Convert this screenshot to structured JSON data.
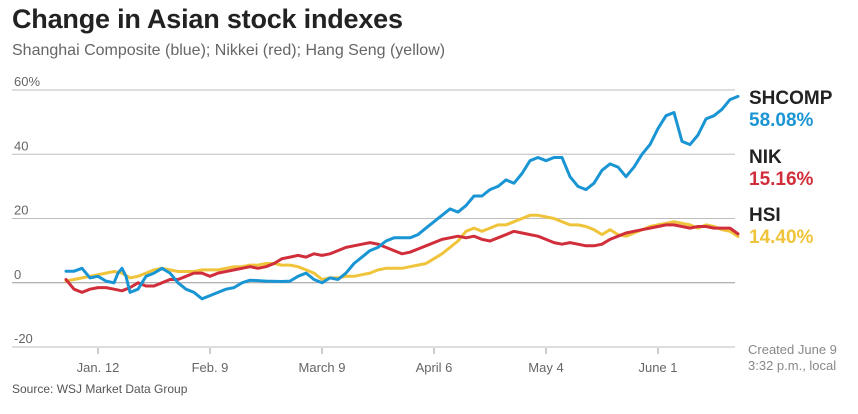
{
  "title": "Change in Asian stock indexes",
  "subtitle": "Shanghai Composite (blue); Nikkei (red); Hang Seng (yellow)",
  "source": "Source: WSJ Market Data Group",
  "created_line1": "Created June 9",
  "created_line2": "3:32 p.m., local",
  "chart_data": {
    "type": "line",
    "ylim": [
      -20,
      60
    ],
    "y_ticks": [
      {
        "value": 60,
        "label": "60%"
      },
      {
        "value": 40,
        "label": "40"
      },
      {
        "value": 20,
        "label": "20"
      },
      {
        "value": 0,
        "label": "0"
      },
      {
        "value": -20,
        "label": "-20"
      }
    ],
    "x_range": [
      0,
      160
    ],
    "x_ticks": [
      {
        "value": 8,
        "label": "Jan. 12"
      },
      {
        "value": 36,
        "label": "Feb. 9"
      },
      {
        "value": 64,
        "label": "March 9"
      },
      {
        "value": 92,
        "label": "April 6"
      },
      {
        "value": 120,
        "label": "May 4"
      },
      {
        "value": 148,
        "label": "June 1"
      }
    ],
    "series": [
      {
        "name": "SHCOMP",
        "end_label": "58.08%",
        "color": "#1a95d4",
        "points": [
          [
            0,
            3.6
          ],
          [
            2,
            3.6
          ],
          [
            4,
            4.5
          ],
          [
            6,
            1.5
          ],
          [
            8,
            2
          ],
          [
            10,
            0.5
          ],
          [
            12,
            0
          ],
          [
            13,
            3
          ],
          [
            14,
            4.5
          ],
          [
            15,
            2
          ],
          [
            16,
            -3
          ],
          [
            18,
            -2
          ],
          [
            20,
            2
          ],
          [
            22,
            3
          ],
          [
            24,
            4.5
          ],
          [
            26,
            3
          ],
          [
            28,
            0
          ],
          [
            30,
            -2
          ],
          [
            32,
            -3
          ],
          [
            34,
            -5
          ],
          [
            36,
            -4
          ],
          [
            38,
            -3
          ],
          [
            40,
            -2
          ],
          [
            42,
            -1.5
          ],
          [
            44,
            0
          ],
          [
            46,
            0.8
          ],
          [
            50,
            0.5
          ],
          [
            54,
            0.4
          ],
          [
            56,
            0.5
          ],
          [
            58,
            2
          ],
          [
            60,
            3
          ],
          [
            62,
            1
          ],
          [
            64,
            0
          ],
          [
            66,
            1.5
          ],
          [
            68,
            1
          ],
          [
            70,
            3
          ],
          [
            72,
            6
          ],
          [
            74,
            8
          ],
          [
            76,
            10
          ],
          [
            78,
            11
          ],
          [
            80,
            13
          ],
          [
            82,
            14
          ],
          [
            84,
            14
          ],
          [
            86,
            14
          ],
          [
            88,
            15
          ],
          [
            90,
            17
          ],
          [
            92,
            19
          ],
          [
            94,
            21
          ],
          [
            96,
            23
          ],
          [
            98,
            22
          ],
          [
            100,
            24
          ],
          [
            102,
            27
          ],
          [
            104,
            27
          ],
          [
            106,
            29
          ],
          [
            108,
            30
          ],
          [
            110,
            32
          ],
          [
            112,
            31
          ],
          [
            114,
            34
          ],
          [
            116,
            38
          ],
          [
            118,
            39
          ],
          [
            120,
            38
          ],
          [
            122,
            39
          ],
          [
            124,
            39
          ],
          [
            126,
            33
          ],
          [
            128,
            30
          ],
          [
            130,
            29
          ],
          [
            132,
            31
          ],
          [
            134,
            35
          ],
          [
            136,
            37
          ],
          [
            138,
            36
          ],
          [
            140,
            33
          ],
          [
            142,
            36
          ],
          [
            144,
            40
          ],
          [
            146,
            43
          ],
          [
            148,
            48
          ],
          [
            150,
            52
          ],
          [
            152,
            53
          ],
          [
            154,
            44
          ],
          [
            156,
            43
          ],
          [
            158,
            46
          ],
          [
            160,
            51
          ],
          [
            162,
            52
          ],
          [
            164,
            54
          ],
          [
            166,
            57
          ],
          [
            168,
            58
          ]
        ]
      },
      {
        "name": "NIK",
        "end_label": "15.16%",
        "color": "#d12e3b",
        "points": [
          [
            0,
            1
          ],
          [
            2,
            -2
          ],
          [
            4,
            -3
          ],
          [
            6,
            -2
          ],
          [
            8,
            -1.5
          ],
          [
            10,
            -1.5
          ],
          [
            12,
            -2
          ],
          [
            14,
            -2.5
          ],
          [
            16,
            -1.5
          ],
          [
            18,
            0
          ],
          [
            20,
            -1
          ],
          [
            22,
            -1
          ],
          [
            24,
            0
          ],
          [
            26,
            1
          ],
          [
            28,
            1
          ],
          [
            30,
            2
          ],
          [
            32,
            3
          ],
          [
            34,
            3
          ],
          [
            36,
            2
          ],
          [
            38,
            3
          ],
          [
            40,
            3.5
          ],
          [
            42,
            4
          ],
          [
            44,
            4.5
          ],
          [
            46,
            5
          ],
          [
            48,
            4.5
          ],
          [
            50,
            5
          ],
          [
            52,
            6
          ],
          [
            54,
            7.5
          ],
          [
            56,
            8
          ],
          [
            58,
            8.5
          ],
          [
            60,
            8
          ],
          [
            62,
            9
          ],
          [
            64,
            8.5
          ],
          [
            66,
            9
          ],
          [
            68,
            10
          ],
          [
            70,
            11
          ],
          [
            72,
            11.5
          ],
          [
            74,
            12
          ],
          [
            76,
            12.5
          ],
          [
            78,
            12
          ],
          [
            80,
            11
          ],
          [
            82,
            10
          ],
          [
            84,
            9
          ],
          [
            86,
            9.5
          ],
          [
            88,
            10.5
          ],
          [
            90,
            11.5
          ],
          [
            92,
            12.5
          ],
          [
            94,
            13.5
          ],
          [
            96,
            14
          ],
          [
            98,
            14.5
          ],
          [
            100,
            14
          ],
          [
            102,
            14.5
          ],
          [
            104,
            13.5
          ],
          [
            106,
            13
          ],
          [
            108,
            14
          ],
          [
            110,
            15
          ],
          [
            112,
            16
          ],
          [
            114,
            15.5
          ],
          [
            116,
            15
          ],
          [
            118,
            14.5
          ],
          [
            120,
            13.5
          ],
          [
            122,
            12.5
          ],
          [
            124,
            12
          ],
          [
            126,
            12.5
          ],
          [
            128,
            12
          ],
          [
            130,
            11.5
          ],
          [
            132,
            11.5
          ],
          [
            134,
            12
          ],
          [
            136,
            13.5
          ],
          [
            138,
            14.5
          ],
          [
            140,
            15.5
          ],
          [
            142,
            16
          ],
          [
            144,
            16.5
          ],
          [
            146,
            17
          ],
          [
            148,
            17.5
          ],
          [
            150,
            18
          ],
          [
            152,
            18
          ],
          [
            154,
            17.5
          ],
          [
            156,
            17
          ],
          [
            158,
            17.5
          ],
          [
            160,
            17.5
          ],
          [
            162,
            17
          ],
          [
            164,
            17
          ],
          [
            166,
            17
          ],
          [
            168,
            15.2
          ]
        ]
      },
      {
        "name": "HSI",
        "end_label": "14.40%",
        "color": "#f0c43a",
        "points": [
          [
            0,
            0.5
          ],
          [
            2,
            1
          ],
          [
            4,
            1.5
          ],
          [
            6,
            2
          ],
          [
            8,
            2.5
          ],
          [
            10,
            3
          ],
          [
            12,
            3.5
          ],
          [
            14,
            3
          ],
          [
            16,
            1.5
          ],
          [
            18,
            2
          ],
          [
            20,
            3
          ],
          [
            22,
            4
          ],
          [
            24,
            4.5
          ],
          [
            26,
            4
          ],
          [
            28,
            3.5
          ],
          [
            30,
            3.5
          ],
          [
            32,
            3.5
          ],
          [
            34,
            4
          ],
          [
            36,
            4
          ],
          [
            38,
            4
          ],
          [
            40,
            4.5
          ],
          [
            42,
            5
          ],
          [
            44,
            5
          ],
          [
            46,
            5.5
          ],
          [
            48,
            5.5
          ],
          [
            50,
            6
          ],
          [
            52,
            6
          ],
          [
            54,
            5.5
          ],
          [
            56,
            5.5
          ],
          [
            58,
            5
          ],
          [
            60,
            4
          ],
          [
            62,
            3
          ],
          [
            64,
            1
          ],
          [
            66,
            1.5
          ],
          [
            68,
            1.5
          ],
          [
            70,
            2
          ],
          [
            72,
            2
          ],
          [
            74,
            2.5
          ],
          [
            76,
            3
          ],
          [
            78,
            4
          ],
          [
            80,
            4.5
          ],
          [
            82,
            4.5
          ],
          [
            84,
            4.5
          ],
          [
            86,
            5
          ],
          [
            88,
            5.5
          ],
          [
            90,
            6
          ],
          [
            92,
            7.5
          ],
          [
            94,
            9
          ],
          [
            96,
            11
          ],
          [
            98,
            13
          ],
          [
            100,
            16
          ],
          [
            102,
            17
          ],
          [
            104,
            16
          ],
          [
            106,
            17
          ],
          [
            108,
            18
          ],
          [
            110,
            18
          ],
          [
            112,
            19
          ],
          [
            114,
            20
          ],
          [
            116,
            21
          ],
          [
            118,
            21
          ],
          [
            120,
            20.5
          ],
          [
            122,
            20
          ],
          [
            124,
            19
          ],
          [
            126,
            18
          ],
          [
            128,
            18
          ],
          [
            130,
            17.5
          ],
          [
            132,
            16.5
          ],
          [
            134,
            15
          ],
          [
            136,
            16.5
          ],
          [
            138,
            15
          ],
          [
            140,
            14.5
          ],
          [
            142,
            15.5
          ],
          [
            144,
            16.5
          ],
          [
            146,
            17.5
          ],
          [
            148,
            18
          ],
          [
            150,
            18.5
          ],
          [
            152,
            19
          ],
          [
            154,
            18.5
          ],
          [
            156,
            18
          ],
          [
            158,
            17
          ],
          [
            160,
            18
          ],
          [
            162,
            17.5
          ],
          [
            164,
            16.5
          ],
          [
            166,
            16
          ],
          [
            168,
            14.4
          ]
        ]
      }
    ]
  }
}
